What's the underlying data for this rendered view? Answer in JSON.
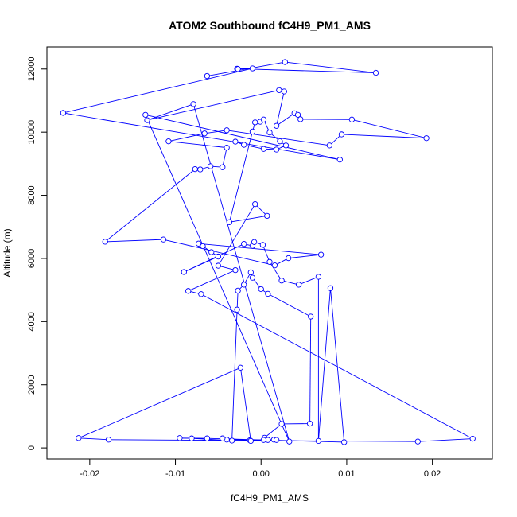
{
  "chart_data": {
    "type": "line",
    "title": "ATOM2 Southbound fC4H9_PM1_AMS",
    "xlabel": "fC4H9_PM1_AMS",
    "ylabel": "Altitude (m)",
    "xlim": [
      -0.025,
      0.027
    ],
    "ylim": [
      -350,
      12700
    ],
    "x_ticks": [
      -0.02,
      -0.01,
      0.0,
      0.01,
      0.02
    ],
    "x_tick_labels": [
      "-0.02",
      "-0.01",
      "0.00",
      "0.01",
      "0.02"
    ],
    "y_ticks": [
      0,
      2000,
      4000,
      6000,
      8000,
      10000,
      12000
    ],
    "y_tick_labels": [
      "0",
      "2000",
      "4000",
      "6000",
      "8000",
      "10000",
      "12000"
    ],
    "grid": false,
    "line_color": "#0000ff",
    "marker": "open-circle",
    "series": [
      {
        "points": [
          [
            -0.0063,
            11780
          ],
          [
            0.0028,
            12220
          ],
          [
            0.0134,
            11880
          ],
          [
            -0.0028,
            12010
          ],
          [
            -0.0027,
            12000
          ],
          [
            -0.001,
            12020
          ],
          [
            -0.0231,
            10610
          ],
          [
            0.0092,
            9130
          ],
          [
            -0.0135,
            10550
          ],
          [
            0.0033,
            200
          ],
          [
            -0.0079,
            10890
          ],
          [
            -0.0133,
            10380
          ],
          [
            0.0021,
            11330
          ],
          [
            0.0027,
            11290
          ],
          [
            0.0018,
            10200
          ],
          [
            0.0039,
            10600
          ],
          [
            0.0043,
            10550
          ],
          [
            0.0046,
            10410
          ],
          [
            0.0106,
            10400
          ],
          [
            0.0193,
            9810
          ],
          [
            0.0094,
            9930
          ],
          [
            0.008,
            9580
          ],
          [
            -0.004,
            10060
          ],
          [
            -0.0066,
            9960
          ],
          [
            -0.0108,
            9710
          ],
          [
            -0.004,
            9510
          ],
          [
            -0.0045,
            8890
          ],
          [
            -0.0059,
            8920
          ],
          [
            -0.0071,
            8820
          ],
          [
            -0.0077,
            8830
          ],
          [
            -0.0182,
            6530
          ],
          [
            -0.0114,
            6600
          ],
          [
            0.0016,
            5780
          ],
          [
            0.0032,
            6010
          ],
          [
            0.007,
            6120
          ],
          [
            -0.0073,
            6470
          ],
          [
            -0.0068,
            6390
          ],
          [
            -0.0058,
            6200
          ],
          [
            -0.005,
            6060
          ],
          [
            -0.009,
            5570
          ],
          [
            -0.002,
            6460
          ],
          [
            -0.001,
            6400
          ],
          [
            -0.0008,
            6520
          ],
          [
            0.0002,
            6430
          ],
          [
            0.001,
            5890
          ],
          [
            0.0024,
            5300
          ],
          [
            0.0044,
            5170
          ],
          [
            0.0067,
            5420
          ],
          [
            0.0067,
            220
          ],
          [
            0.0081,
            5060
          ],
          [
            0.0097,
            180
          ],
          [
            -0.0063,
            300
          ],
          [
            -0.0095,
            310
          ],
          [
            -0.0081,
            300
          ],
          [
            -0.0034,
            230
          ],
          [
            -0.0028,
            4380
          ],
          [
            -0.0027,
            4980
          ],
          [
            -0.002,
            5170
          ],
          [
            -0.0012,
            5560
          ],
          [
            -0.001,
            5390
          ],
          [
            0.0,
            5030
          ],
          [
            0.0008,
            4880
          ],
          [
            0.0058,
            4160
          ],
          [
            0.0057,
            770
          ],
          [
            0.0024,
            760
          ],
          [
            0.0004,
            320
          ],
          [
            0.0008,
            250
          ],
          [
            0.0015,
            260
          ],
          [
            0.0018,
            250
          ],
          [
            0.0003,
            250
          ],
          [
            -0.004,
            260
          ],
          [
            -0.0045,
            300
          ],
          [
            -0.0013,
            240
          ],
          [
            -0.0012,
            220
          ],
          [
            -0.0024,
            2540
          ],
          [
            -0.0213,
            310
          ],
          [
            -0.0178,
            260
          ],
          [
            0.0183,
            200
          ],
          [
            0.0247,
            290
          ],
          [
            -0.007,
            4870
          ],
          [
            -0.0085,
            4970
          ],
          [
            -0.003,
            5630
          ],
          [
            -0.005,
            5770
          ],
          [
            -0.0007,
            7720
          ],
          [
            0.0007,
            7350
          ],
          [
            -0.0037,
            7150
          ],
          [
            -0.001,
            10020
          ],
          [
            -0.0007,
            10310
          ],
          [
            -0.0001,
            10330
          ],
          [
            0.0003,
            10400
          ],
          [
            0.001,
            9990
          ],
          [
            0.0022,
            9710
          ],
          [
            0.0029,
            9580
          ],
          [
            0.0018,
            9450
          ],
          [
            0.0003,
            9470
          ],
          [
            -0.002,
            9600
          ],
          [
            -0.003,
            9700
          ]
        ]
      }
    ]
  }
}
